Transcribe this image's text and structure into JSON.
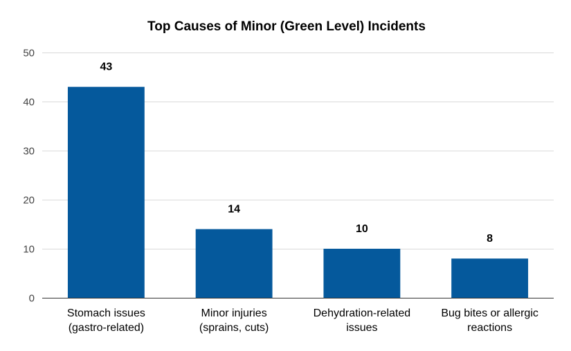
{
  "chart_data": {
    "type": "bar",
    "title": "Top Causes of Minor (Green Level) Incidents",
    "xlabel": "",
    "ylabel": "",
    "ylim": [
      0,
      50
    ],
    "yticks": [
      0,
      10,
      20,
      30,
      40,
      50
    ],
    "grid": true,
    "legend": "none",
    "bar_color": "#05599c",
    "categories": [
      [
        "Stomach issues",
        "(gastro-related)"
      ],
      [
        "Minor injuries",
        "(sprains, cuts)"
      ],
      [
        "Dehydration-related",
        "issues"
      ],
      [
        "Bug bites or allergic",
        "reactions"
      ]
    ],
    "values": [
      43,
      14,
      10,
      8
    ],
    "data_labels": [
      "43",
      "14",
      "10",
      "8"
    ]
  }
}
